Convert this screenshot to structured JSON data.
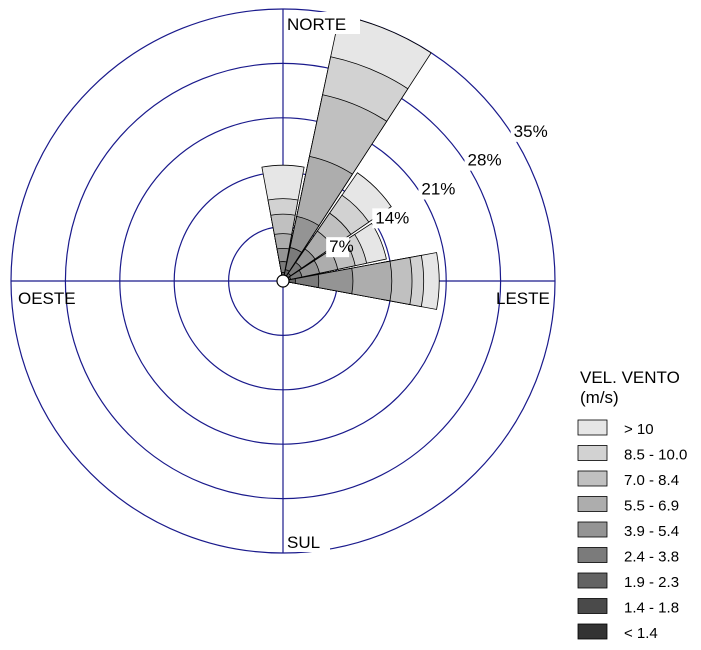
{
  "chart_data": {
    "type": "wind-rose",
    "directions": {
      "north": "NORTE",
      "south": "SUL",
      "east": "LESTE",
      "west": "OESTE"
    },
    "radial_axis": {
      "unit": "%",
      "rings": [
        7,
        14,
        21,
        28,
        35
      ],
      "ring_labels": [
        "7%",
        "14%",
        "21%",
        "28%",
        "35%"
      ]
    },
    "legend": {
      "title_line1": "VEL. VENTO",
      "title_line2": "(m/s)",
      "placement": "bottom-right"
    },
    "speed_classes": [
      {
        "label": "< 1.4",
        "color": "#333333"
      },
      {
        "label": "1.4 - 1.8",
        "color": "#4a4a4a"
      },
      {
        "label": "1.9 - 2.3",
        "color": "#636363"
      },
      {
        "label": "2.4 - 3.8",
        "color": "#7b7b7b"
      },
      {
        "label": "3.9 - 5.4",
        "color": "#949494"
      },
      {
        "label": "5.5 - 6.9",
        "color": "#adadad"
      },
      {
        "label": "7.0 - 8.4",
        "color": "#c0c0c0"
      },
      {
        "label": "8.5 - 10.0",
        "color": "#d2d2d2"
      },
      {
        "label": "> 10",
        "color": "#e6e6e6"
      }
    ],
    "sectors": [
      {
        "direction_deg": 0,
        "cumulative": [
          0.3,
          0.6,
          1.1,
          2.5,
          4.2,
          6.1,
          8.6,
          10.6,
          14.9
        ]
      },
      {
        "direction_deg": 22.5,
        "cumulative": [
          0.3,
          0.7,
          1.5,
          4.4,
          8.5,
          16.4,
          24.5,
          29.5,
          35.0
        ]
      },
      {
        "direction_deg": 45,
        "cumulative": [
          0.3,
          0.6,
          1.2,
          2.9,
          5.0,
          7.8,
          10.6,
          13.4,
          16.9
        ]
      },
      {
        "direction_deg": 67.5,
        "cumulative": [
          0.2,
          0.5,
          1.0,
          2.5,
          4.8,
          7.2,
          9.5,
          11.0,
          13.6
        ]
      },
      {
        "direction_deg": 90,
        "cumulative": [
          0.4,
          0.8,
          1.6,
          4.6,
          9.0,
          14.0,
          16.6,
          18.1,
          20.1
        ]
      }
    ]
  }
}
